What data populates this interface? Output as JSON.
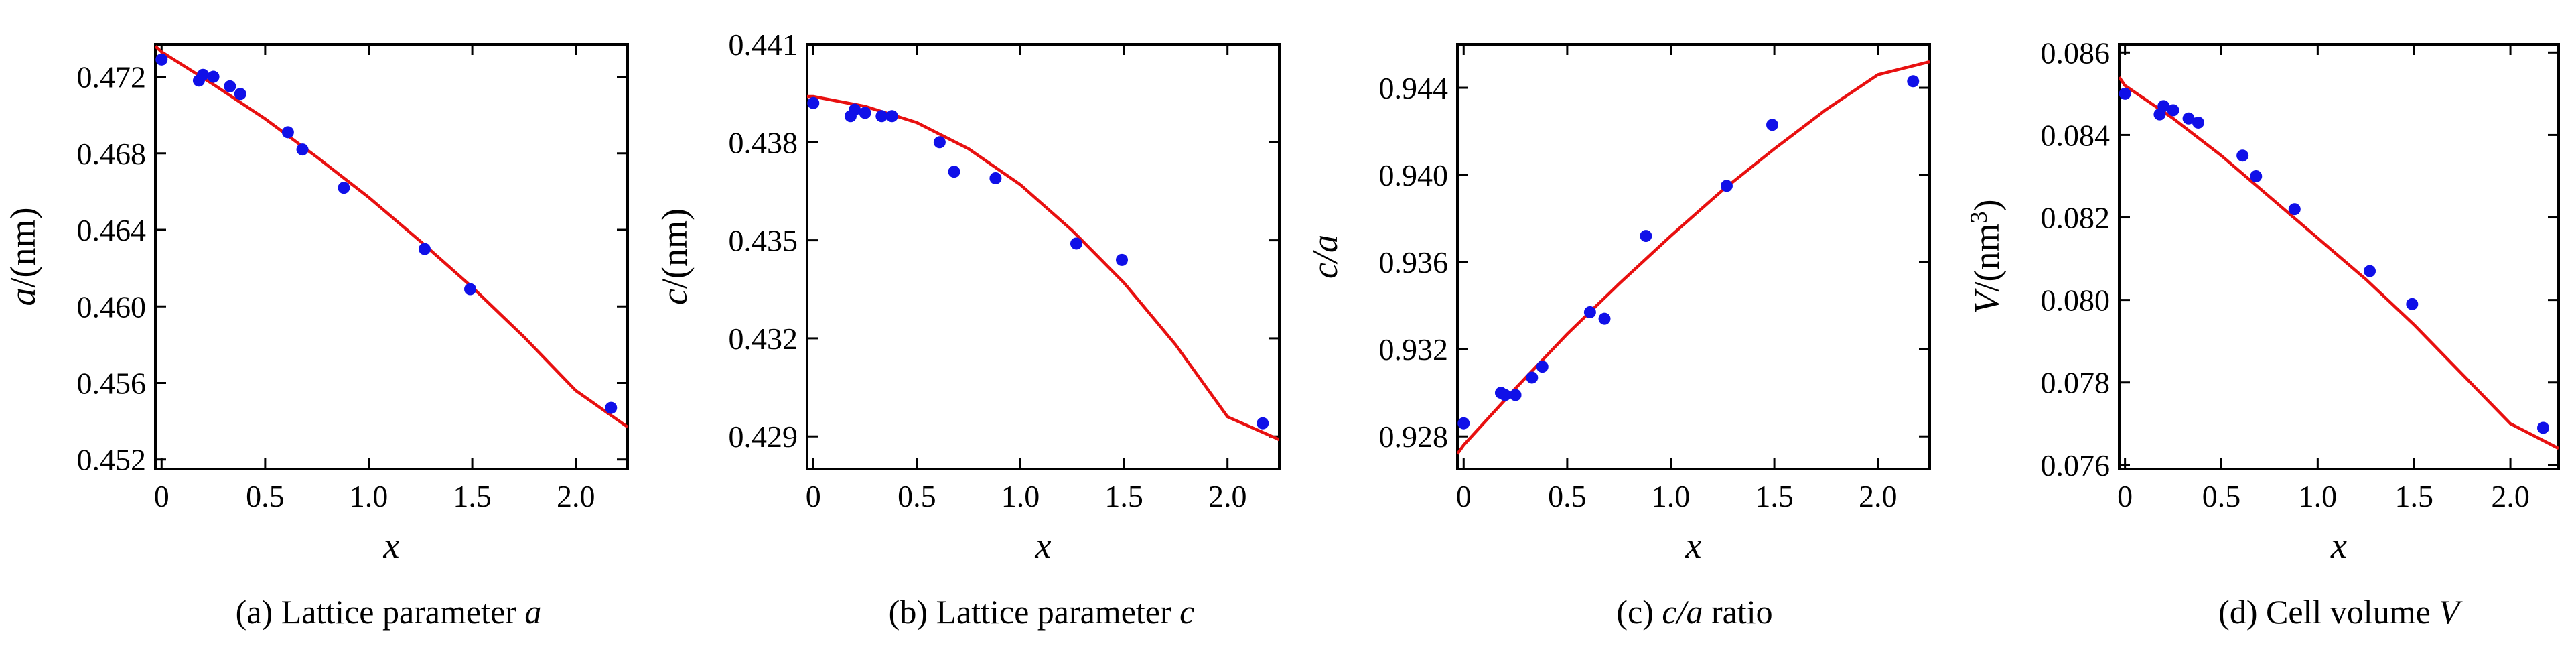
{
  "colors": {
    "points": "#1010e8",
    "fit": "#e81010",
    "axes": "#000000"
  },
  "panels": [
    {
      "caption": {
        "prefix": "(a) Lattice parameter ",
        "symbol": "a",
        "suffix": ""
      },
      "xlabel": "x",
      "ylabel": {
        "symbol": "a",
        "rest": "/(nm)",
        "sup": ""
      },
      "xticks": [
        "0",
        "0.5",
        "1.0",
        "1.5",
        "2.0"
      ],
      "yticks": [
        "0.452",
        "0.456",
        "0.460",
        "0.464",
        "0.468",
        "0.472"
      ]
    },
    {
      "caption": {
        "prefix": "(b) Lattice parameter ",
        "symbol": "c",
        "suffix": ""
      },
      "xlabel": "x",
      "ylabel": {
        "symbol": "c",
        "rest": "/(nm)",
        "sup": ""
      },
      "xticks": [
        "0",
        "0.5",
        "1.0",
        "1.5",
        "2.0"
      ],
      "yticks": [
        "0.429",
        "0.432",
        "0.435",
        "0.438",
        "0.441"
      ]
    },
    {
      "caption": {
        "prefix": "(c) ",
        "symbol": "c/a",
        "suffix": " ratio"
      },
      "xlabel": "x",
      "ylabel": {
        "symbol": "c/a",
        "rest": "",
        "sup": ""
      },
      "xticks": [
        "0",
        "0.5",
        "1.0",
        "1.5",
        "2.0"
      ],
      "yticks": [
        "0.928",
        "0.932",
        "0.936",
        "0.940",
        "0.944"
      ]
    },
    {
      "caption": {
        "prefix": "(d) Cell volume ",
        "symbol": "V",
        "suffix": ""
      },
      "xlabel": "x",
      "ylabel": {
        "symbol": "V",
        "rest": "/(nm",
        "sup": "3",
        "close": ")"
      },
      "xticks": [
        "0",
        "0.5",
        "1.0",
        "1.5",
        "2.0"
      ],
      "yticks": [
        "0.076",
        "0.078",
        "0.080",
        "0.082",
        "0.084",
        "0.086"
      ]
    }
  ],
  "chart_data": [
    {
      "type": "scatter",
      "title": "(a) Lattice parameter a",
      "xlabel": "x",
      "ylabel": "a/(nm)",
      "xlim": [
        -0.03,
        2.25
      ],
      "ylim": [
        0.4515,
        0.4737
      ],
      "xticks": [
        0,
        0.5,
        1.0,
        1.5,
        2.0
      ],
      "yticks": [
        0.452,
        0.456,
        0.46,
        0.464,
        0.468,
        0.472
      ],
      "grid": false,
      "series": [
        {
          "kind": "points",
          "x": [
            0.0,
            0.18,
            0.2,
            0.25,
            0.33,
            0.38,
            0.61,
            0.68,
            0.88,
            1.27,
            1.49,
            2.17
          ],
          "y": [
            0.4729,
            0.4718,
            0.4721,
            0.472,
            0.4715,
            0.4711,
            0.4691,
            0.4682,
            0.4662,
            0.463,
            0.4609,
            0.4547
          ]
        },
        {
          "kind": "fit-line",
          "x": [
            -0.03,
            0.0,
            0.25,
            0.5,
            0.75,
            1.0,
            1.25,
            1.5,
            1.75,
            2.0,
            2.25
          ],
          "y": [
            0.4736,
            0.4733,
            0.4716,
            0.4698,
            0.4678,
            0.4657,
            0.4634,
            0.461,
            0.4584,
            0.4556,
            0.4537
          ]
        }
      ]
    },
    {
      "type": "scatter",
      "title": "(b) Lattice parameter c",
      "xlabel": "x",
      "ylabel": "c/(nm)",
      "xlim": [
        -0.03,
        2.25
      ],
      "ylim": [
        0.428,
        0.441
      ],
      "xticks": [
        0,
        0.5,
        1.0,
        1.5,
        2.0
      ],
      "yticks": [
        0.429,
        0.432,
        0.435,
        0.438,
        0.441
      ],
      "grid": false,
      "series": [
        {
          "kind": "points",
          "x": [
            0.0,
            0.18,
            0.2,
            0.25,
            0.33,
            0.38,
            0.61,
            0.68,
            0.88,
            1.27,
            1.49,
            2.17
          ],
          "y": [
            0.4392,
            0.4388,
            0.439,
            0.4389,
            0.4388,
            0.4388,
            0.438,
            0.4371,
            0.4369,
            0.4349,
            0.4344,
            0.4294
          ]
        },
        {
          "kind": "fit-line",
          "x": [
            -0.03,
            0.0,
            0.25,
            0.5,
            0.75,
            1.0,
            1.25,
            1.5,
            1.75,
            2.0,
            2.25
          ],
          "y": [
            0.4394,
            0.4394,
            0.4391,
            0.4386,
            0.4378,
            0.4367,
            0.4353,
            0.4337,
            0.4318,
            0.4296,
            0.4289
          ]
        }
      ]
    },
    {
      "type": "scatter",
      "title": "(c) c/a ratio",
      "xlabel": "x",
      "ylabel": "c/a",
      "xlim": [
        -0.03,
        2.25
      ],
      "ylim": [
        0.9265,
        0.946
      ],
      "xticks": [
        0,
        0.5,
        1.0,
        1.5,
        2.0
      ],
      "yticks": [
        0.928,
        0.932,
        0.936,
        0.94,
        0.944
      ],
      "grid": false,
      "series": [
        {
          "kind": "points",
          "x": [
            0.0,
            0.18,
            0.2,
            0.25,
            0.33,
            0.38,
            0.61,
            0.68,
            0.88,
            1.27,
            1.49,
            2.17
          ],
          "y": [
            0.9286,
            0.93,
            0.9299,
            0.9299,
            0.9307,
            0.9312,
            0.9337,
            0.9334,
            0.9372,
            0.9395,
            0.9423,
            0.9443
          ]
        },
        {
          "kind": "fit-line",
          "x": [
            -0.03,
            0.0,
            0.25,
            0.5,
            0.75,
            1.0,
            1.25,
            1.5,
            1.75,
            2.0,
            2.25
          ],
          "y": [
            0.9272,
            0.9276,
            0.9302,
            0.9327,
            0.935,
            0.9372,
            0.9393,
            0.9412,
            0.943,
            0.9446,
            0.9452
          ]
        }
      ]
    },
    {
      "type": "scatter",
      "title": "(d) Cell volume V",
      "xlabel": "x",
      "ylabel": "V/(nm3)",
      "xlim": [
        -0.03,
        2.25
      ],
      "ylim": [
        0.0759,
        0.0862
      ],
      "xticks": [
        0,
        0.5,
        1.0,
        1.5,
        2.0
      ],
      "yticks": [
        0.076,
        0.078,
        0.08,
        0.082,
        0.084,
        0.086
      ],
      "grid": false,
      "series": [
        {
          "kind": "points",
          "x": [
            0.0,
            0.18,
            0.2,
            0.25,
            0.33,
            0.38,
            0.61,
            0.68,
            0.88,
            1.27,
            1.49,
            2.17
          ],
          "y": [
            0.085,
            0.0845,
            0.0847,
            0.0846,
            0.0844,
            0.0843,
            0.0835,
            0.083,
            0.0822,
            0.0807,
            0.0799,
            0.0769
          ]
        },
        {
          "kind": "fit-line",
          "x": [
            -0.03,
            0.0,
            0.25,
            0.5,
            0.75,
            1.0,
            1.25,
            1.5,
            1.75,
            2.0,
            2.25
          ],
          "y": [
            0.0854,
            0.0852,
            0.0844,
            0.0835,
            0.0825,
            0.0815,
            0.0805,
            0.0794,
            0.0782,
            0.077,
            0.0764
          ]
        }
      ]
    }
  ]
}
